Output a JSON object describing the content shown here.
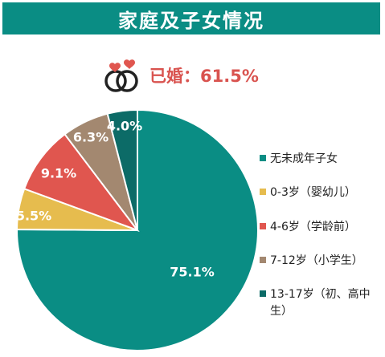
{
  "title": "家庭及子女情况",
  "married": {
    "text": "已婚：61.5%",
    "color": "#d9534f"
  },
  "colors": {
    "teal": "#0a8d84",
    "yellow": "#e6bc4e",
    "red": "#e0564f",
    "tan": "#a38870",
    "dark_teal": "#0c6b67"
  },
  "icons": {
    "married": "wedding-rings-with-hearts-icon"
  },
  "chart_data": {
    "type": "pie",
    "categories": [
      "无未成年子女",
      "0-3岁（婴幼儿）",
      "4-6岁（学龄前）",
      "7-12岁（小学生）",
      "13-17岁（初、高中生）"
    ],
    "values": [
      75.1,
      5.5,
      9.1,
      6.3,
      4.0
    ],
    "labels": [
      "75.1%",
      "5.5%",
      "9.1%",
      "6.3%",
      "4.0%"
    ],
    "colors": [
      "#0a8d84",
      "#e6bc4e",
      "#e0564f",
      "#a38870",
      "#0c6b67"
    ],
    "start_angle_deg": 0,
    "direction": "clockwise",
    "legend_position": "right"
  }
}
